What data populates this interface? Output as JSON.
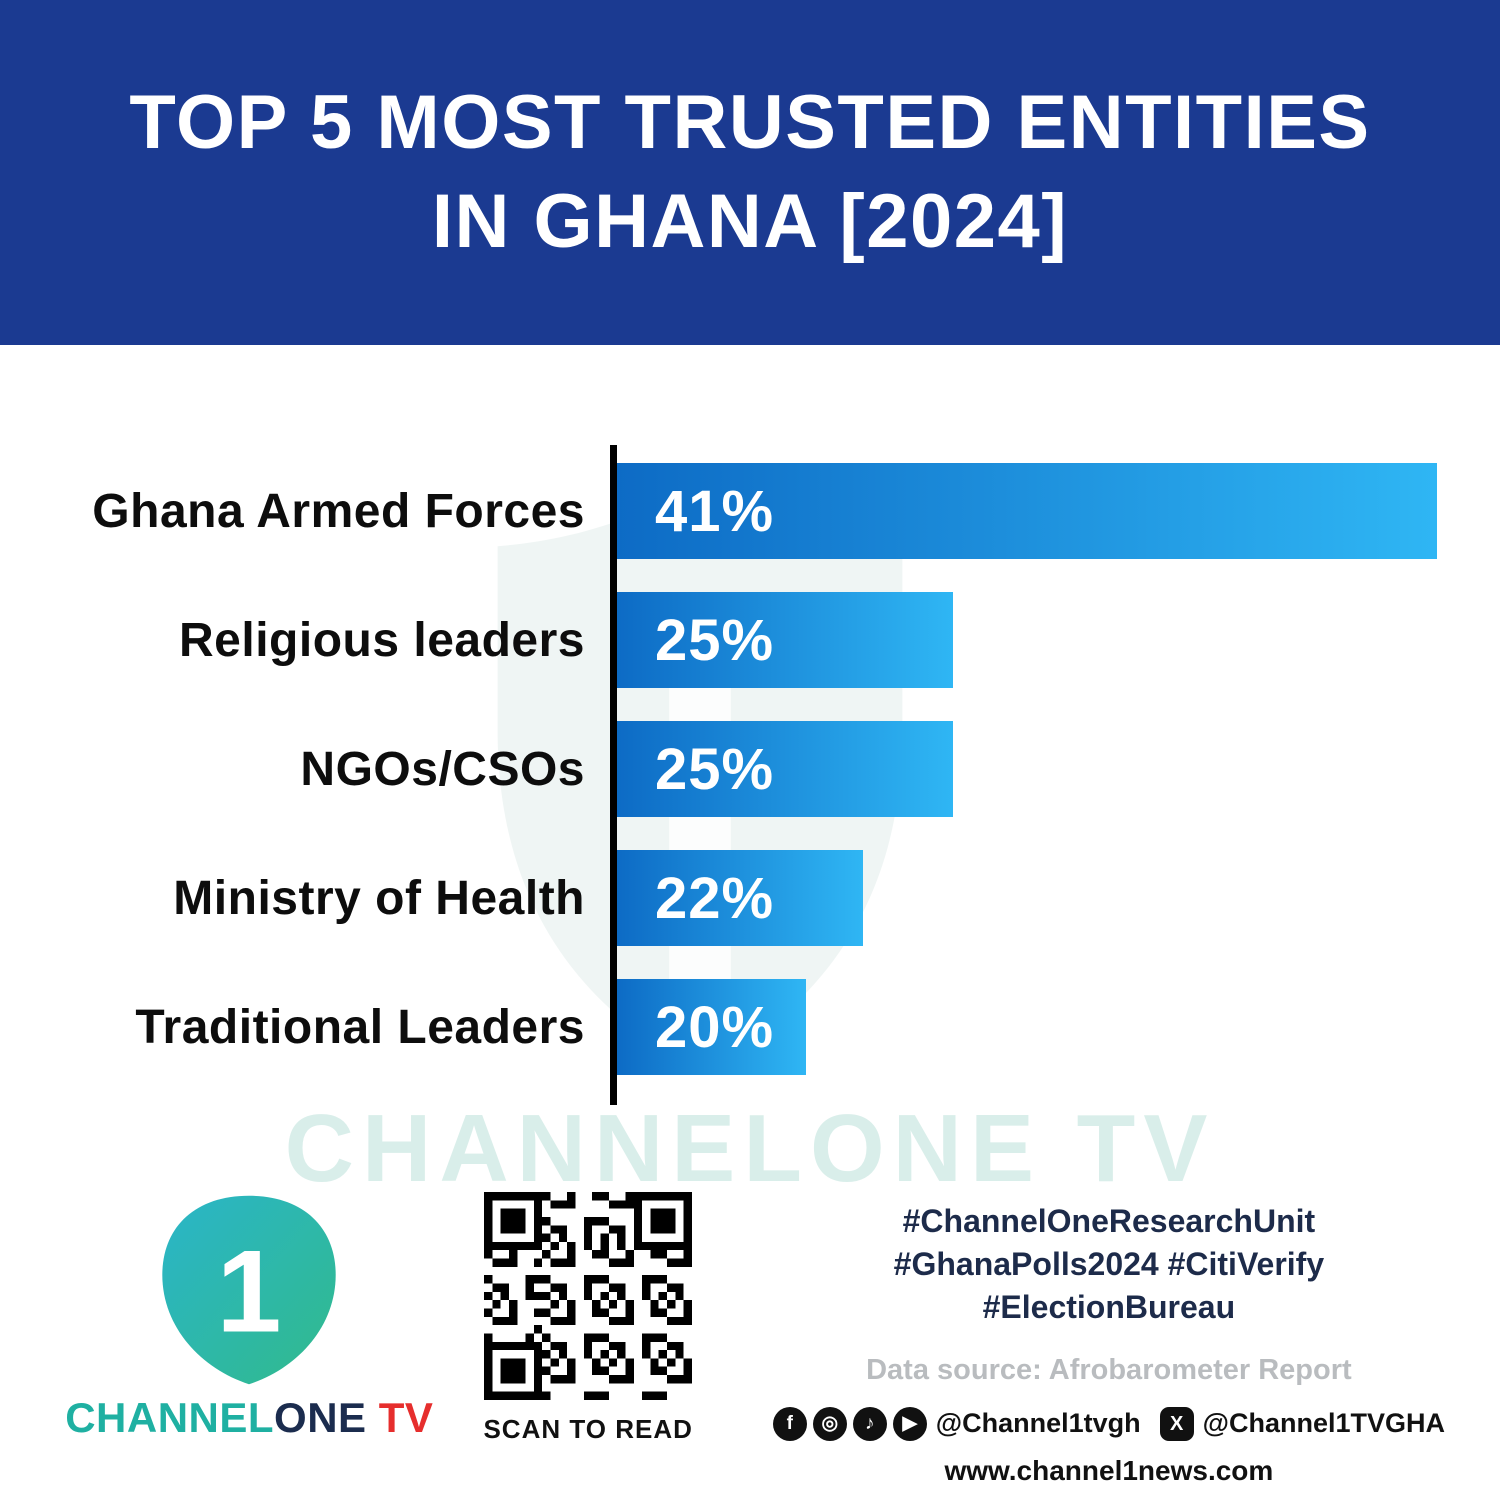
{
  "header": {
    "title_line1": "TOP 5 MOST TRUSTED ENTITIES",
    "title_line2": "IN GHANA [2024]"
  },
  "chart_data": {
    "type": "bar",
    "orientation": "horizontal",
    "title": "TOP 5 MOST TRUSTED ENTITIES IN GHANA [2024]",
    "categories": [
      "Ghana Armed Forces",
      "Religious leaders",
      "NGOs/CSOs",
      "Ministry of Health",
      "Traditional Leaders"
    ],
    "values": [
      41,
      25,
      25,
      22,
      20
    ],
    "labels": [
      "41%",
      "25%",
      "25%",
      "22%",
      "20%"
    ],
    "xlim": [
      0,
      41
    ],
    "display_width_pct": [
      100,
      41,
      41,
      30,
      23
    ],
    "bar_gradient": [
      "#0d6bc5",
      "#2fb6f4"
    ],
    "axis_color": "#000000",
    "grid": false,
    "legend": false
  },
  "watermark": {
    "text": "CHANNELONE TV"
  },
  "footer": {
    "logo": {
      "mark_text": "1",
      "mark_gradient": [
        "#2ab5c9",
        "#31ba8b"
      ],
      "brand_channel": "CHANNEL",
      "brand_one": "ONE",
      "brand_tv": " TV",
      "teal": "#1fb0a2",
      "navy": "#1b2c4e",
      "red": "#e62e2d"
    },
    "qr": {
      "caption": "SCAN TO READ"
    },
    "hashtags": [
      "#ChannelOneResearchUnit",
      "#GhanaPolls2024 #CitiVerify",
      "#ElectionBureau"
    ],
    "data_source": "Data source: Afrobarometer Report",
    "social": {
      "icons": [
        {
          "name": "facebook-icon",
          "glyph": "f"
        },
        {
          "name": "instagram-icon",
          "glyph": "◎"
        },
        {
          "name": "tiktok-icon",
          "glyph": "♪"
        },
        {
          "name": "youtube-icon",
          "glyph": "▶"
        }
      ],
      "handle_main": "@Channel1tvgh",
      "x_icon": {
        "name": "x-icon",
        "glyph": "X"
      },
      "handle_x": "@Channel1TVGHA",
      "website": "www.channel1news.com"
    }
  },
  "colors": {
    "header_bg": "#1b3a91",
    "header_text": "#ffffff",
    "label_text": "#0d0d0d",
    "hashtag_text": "#1d2b4a",
    "muted_text": "#b9bcbf"
  }
}
